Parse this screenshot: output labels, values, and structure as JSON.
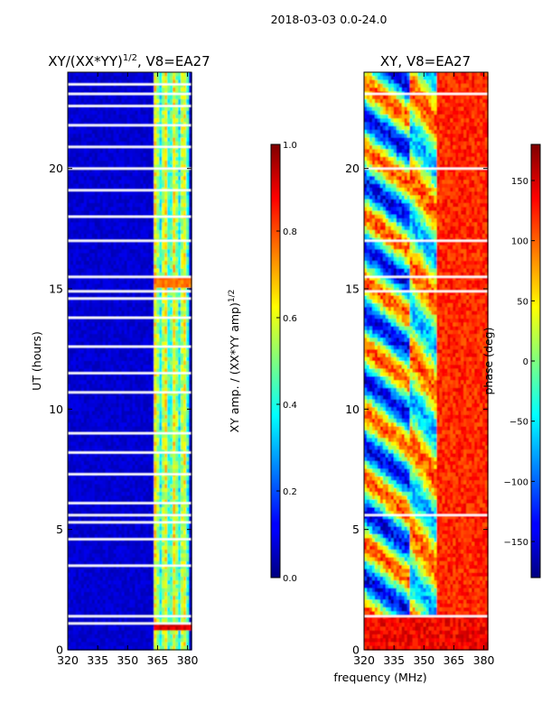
{
  "figure": {
    "suptitle": "2018-03-03 0.0-24.0",
    "xlabel_shared": "frequency (MHz)"
  },
  "chart_data": [
    {
      "type": "heatmap",
      "title": "XY/(XX*YY)",
      "title_exponent": "1/2",
      "title_suffix": ", V8=EA27",
      "ylabel": "UT (hours)",
      "xlim": [
        320,
        382
      ],
      "ylim": [
        0,
        24
      ],
      "xticks": [
        "320",
        "335",
        "350",
        "365",
        "380"
      ],
      "xtick_values": [
        320,
        335,
        350,
        365,
        380
      ],
      "yticks": [
        "0",
        "5",
        "10",
        "15",
        "20"
      ],
      "ytick_values": [
        0,
        5,
        10,
        15,
        20
      ],
      "colorscale": "jet",
      "colorbar": {
        "label": "XY amp. / (XX*YY amp)",
        "label_exponent": "1/2",
        "range": [
          0.0,
          1.0
        ],
        "ticks": [
          "0.0",
          "0.2",
          "0.4",
          "0.6",
          "0.8",
          "1.0"
        ],
        "tick_values": [
          0.0,
          0.2,
          0.4,
          0.6,
          0.8,
          1.0
        ]
      },
      "flagged_hours": [
        1.1,
        1.4,
        3.5,
        4.6,
        5.3,
        5.6,
        6.1,
        7.3,
        8.2,
        9.0,
        10.7,
        11.5,
        12.6,
        13.8,
        14.6,
        14.9,
        15.5,
        17.0,
        18.0,
        19.1,
        20.0,
        20.9,
        21.8,
        22.6,
        23.1,
        23.5
      ],
      "hot_bands": [
        {
          "hour": 0.95,
          "value": 0.95
        },
        {
          "hour": 15.25,
          "value": 0.8
        }
      ],
      "active_freq_range": [
        363,
        380
      ]
    },
    {
      "type": "heatmap",
      "title": "XY, V8=EA27",
      "xlim": [
        320,
        382
      ],
      "ylim": [
        0,
        24
      ],
      "xticks": [
        "320",
        "335",
        "350",
        "365",
        "380"
      ],
      "xtick_values": [
        320,
        335,
        350,
        365,
        380
      ],
      "yticks": [
        "0",
        "5",
        "10",
        "15",
        "20"
      ],
      "ytick_values": [
        0,
        5,
        10,
        15,
        20
      ],
      "colorscale": "jet",
      "colorbar": {
        "label": "phase (deg)",
        "range": [
          -180,
          180
        ],
        "ticks": [
          "−150",
          "−100",
          "−50",
          "0",
          "50",
          "100",
          "150"
        ],
        "tick_values": [
          -150,
          -100,
          -50,
          0,
          50,
          100,
          150
        ]
      },
      "flagged_hours": [
        1.4,
        5.6,
        14.9,
        15.5,
        17.0,
        20.0,
        23.1
      ]
    }
  ]
}
